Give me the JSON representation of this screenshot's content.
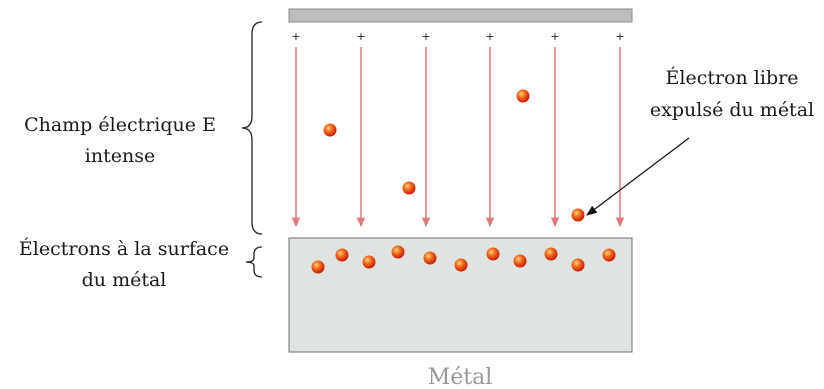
{
  "labels": {
    "field_line1": "Champ électrique E",
    "field_line2": "intense",
    "surface_line1": "Électrons à la surface",
    "surface_line2": "du métal",
    "free_line1": "Électron libre",
    "free_line2": "expulsé du métal",
    "metal": "Métal"
  },
  "plate_sign": "+",
  "colors": {
    "top_plate": "#bdbdbd",
    "metal_block": "#dfe3e2",
    "field_line": "#e07a7a",
    "electron": "#e8380d",
    "electron_highlight": "#ffd27a"
  }
}
